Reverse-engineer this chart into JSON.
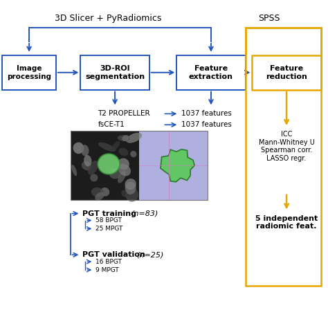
{
  "blue": "#2255BB",
  "gold": "#E6A800",
  "bg": "#FFFFFF",
  "top_label_slicer": "3D Slicer + PyRadiomics",
  "top_label_spss": "SPSS",
  "propeller_label": "T2 PROPELLER",
  "fsce_label": "fsCE-T1",
  "feat1": "1037 features",
  "feat2": "1037 features",
  "pgt_training": "PGT training ",
  "pgt_training_n": "(n=83)",
  "pgt_sub1": "58 BPGT",
  "pgt_sub2": "25 MPGT",
  "pgt_validation": "PGT validation ",
  "pgt_validation_n": "(n=25)",
  "pgt_sub3": "16 BPGT",
  "pgt_sub4": "9 MPGT",
  "stats_text": "ICC\nMann-Whitney U\nSpearman corr.\nLASSO regr.",
  "final_text": "5 independent\nradiomic feat.",
  "box1_label": "Image\nprocessing",
  "box2_label": "3D-ROI\nsegmentation",
  "box3_label": "Feature\nextraction",
  "box4_label": "Feature\nreduction"
}
